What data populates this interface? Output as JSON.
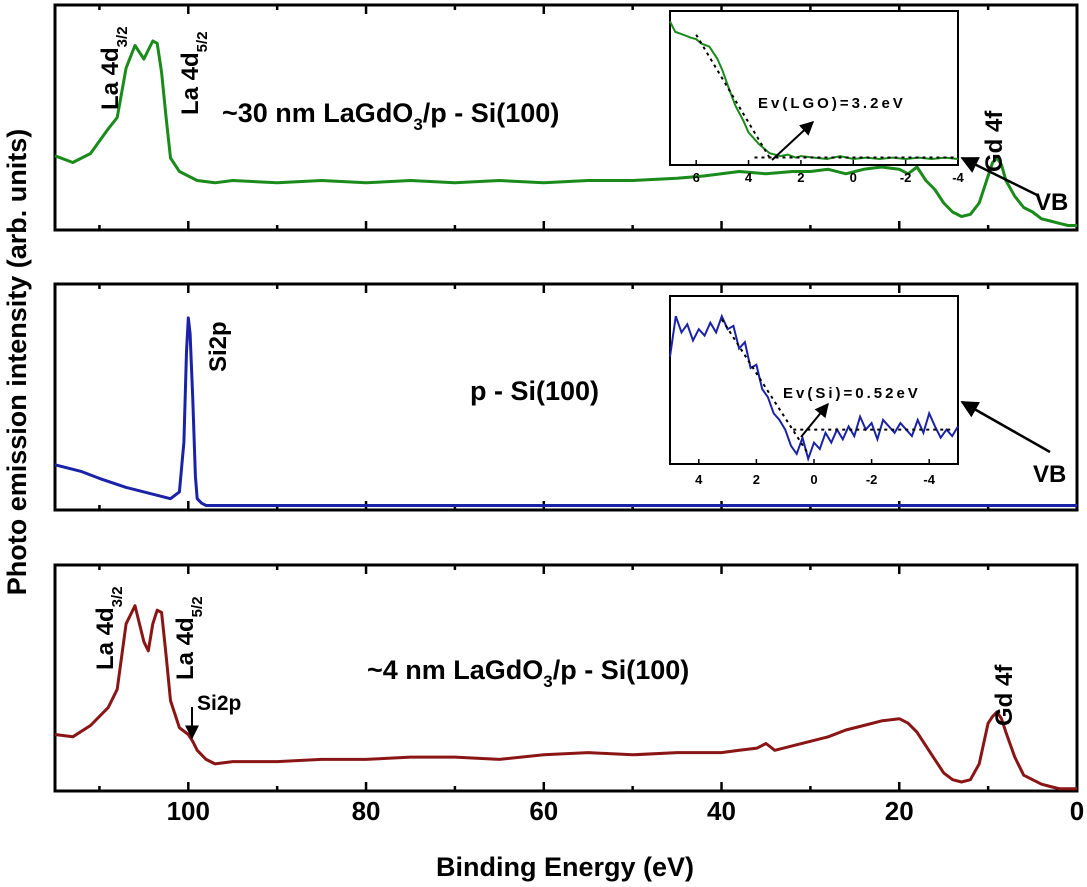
{
  "chart_data": {
    "type": "line",
    "figure": {
      "ylabel": "Photo emission intensity (arb. units)",
      "xlabel": "Binding Energy (eV)",
      "xlim": [
        115,
        0
      ],
      "xticks": [
        100,
        80,
        60,
        40,
        20,
        0
      ],
      "xtick_labels": [
        "100",
        "80",
        "60",
        "40",
        "20",
        "0"
      ]
    },
    "panels": [
      {
        "title": "~30 nm LaGdO3/p - Si(100)",
        "title_main": "~30 nm LaGdO",
        "title_sub": "3",
        "title_rest": "/p - Si(100)",
        "color": "#1a8a1a",
        "ylim": [
          0,
          1
        ],
        "x": [
          115,
          113,
          111,
          109,
          108,
          107,
          106,
          105,
          104.5,
          104,
          103.5,
          103,
          102.5,
          102,
          101,
          100,
          99,
          97,
          95,
          90,
          85,
          80,
          75,
          70,
          65,
          60,
          55,
          50,
          45,
          42,
          40,
          38,
          35,
          32,
          30,
          28,
          26,
          24,
          22,
          20,
          19,
          18,
          17,
          16,
          15,
          14,
          13,
          12,
          11,
          10,
          9.5,
          9,
          8.5,
          8,
          7,
          6,
          5,
          4,
          3,
          2,
          1,
          0
        ],
        "y": [
          0.33,
          0.3,
          0.34,
          0.45,
          0.5,
          0.72,
          0.82,
          0.76,
          0.8,
          0.84,
          0.83,
          0.7,
          0.5,
          0.32,
          0.26,
          0.24,
          0.22,
          0.21,
          0.22,
          0.21,
          0.22,
          0.21,
          0.22,
          0.21,
          0.22,
          0.21,
          0.22,
          0.22,
          0.23,
          0.24,
          0.25,
          0.26,
          0.25,
          0.26,
          0.26,
          0.27,
          0.25,
          0.27,
          0.28,
          0.27,
          0.25,
          0.28,
          0.22,
          0.18,
          0.12,
          0.08,
          0.06,
          0.07,
          0.12,
          0.24,
          0.3,
          0.32,
          0.29,
          0.22,
          0.15,
          0.1,
          0.08,
          0.05,
          0.04,
          0.03,
          0.02,
          0.02
        ],
        "annotations": [
          "La 4d",
          "3/2",
          "La 4d",
          "5/2",
          "Gd 4f",
          "VB"
        ]
      },
      {
        "title": "p - Si(100)",
        "color": "#1a22a8",
        "ylim": [
          0,
          1
        ],
        "x": [
          115,
          112,
          110,
          107,
          104,
          102,
          101,
          100.5,
          100.2,
          100,
          99.8,
          99.5,
          99.2,
          99,
          98.5,
          98,
          97,
          95,
          90,
          85,
          80,
          70,
          60,
          50,
          40,
          30,
          20,
          15,
          10,
          5,
          2,
          0
        ],
        "y": [
          0.2,
          0.17,
          0.14,
          0.1,
          0.07,
          0.05,
          0.08,
          0.3,
          0.7,
          0.85,
          0.78,
          0.5,
          0.15,
          0.05,
          0.03,
          0.02,
          0.02,
          0.02,
          0.02,
          0.02,
          0.02,
          0.02,
          0.02,
          0.02,
          0.02,
          0.02,
          0.02,
          0.02,
          0.02,
          0.02,
          0.02,
          0.02
        ],
        "annotations": [
          "Si2p",
          "VB"
        ]
      },
      {
        "title": "~4 nm LaGdO3/p - Si(100)",
        "title_main": "~4 nm LaGdO",
        "title_sub": "3",
        "title_rest": "/p - Si(100)",
        "color": "#8a1515",
        "ylim": [
          0,
          1
        ],
        "x": [
          115,
          113,
          111,
          109,
          108,
          107,
          106,
          105,
          104.5,
          104,
          103.5,
          103,
          102.5,
          102,
          101,
          100,
          99.5,
          99,
          98,
          97,
          95,
          90,
          85,
          80,
          75,
          70,
          65,
          60,
          55,
          50,
          45,
          40,
          38,
          36,
          35,
          34,
          32,
          30,
          28,
          26,
          24,
          22,
          20,
          19,
          18,
          17,
          16,
          15,
          14,
          13,
          12,
          11,
          10,
          9.5,
          9,
          8.5,
          8,
          7,
          6,
          5,
          4,
          3,
          2,
          1,
          0
        ],
        "y": [
          0.25,
          0.24,
          0.29,
          0.37,
          0.45,
          0.74,
          0.82,
          0.66,
          0.62,
          0.74,
          0.8,
          0.79,
          0.6,
          0.4,
          0.28,
          0.25,
          0.22,
          0.18,
          0.14,
          0.12,
          0.13,
          0.13,
          0.14,
          0.14,
          0.15,
          0.15,
          0.14,
          0.16,
          0.17,
          0.16,
          0.17,
          0.17,
          0.18,
          0.19,
          0.21,
          0.18,
          0.2,
          0.22,
          0.24,
          0.27,
          0.29,
          0.31,
          0.32,
          0.3,
          0.26,
          0.2,
          0.14,
          0.08,
          0.05,
          0.04,
          0.05,
          0.12,
          0.3,
          0.33,
          0.35,
          0.32,
          0.26,
          0.15,
          0.07,
          0.05,
          0.03,
          0.02,
          0.01,
          0.01,
          0.01
        ],
        "annotations": [
          "La 4d",
          "3/2",
          "La 4d",
          "5/2",
          "Si2p",
          "Gd 4f"
        ]
      }
    ],
    "insets": [
      {
        "label": "Ev(LGO)=3.2eV",
        "xlim": [
          7,
          -4
        ],
        "xticks": [
          6,
          4,
          2,
          0,
          -2,
          -4
        ],
        "xtick_labels": [
          "6",
          "4",
          "2",
          "0",
          "-2",
          "-4"
        ],
        "x": [
          7,
          6.8,
          6.5,
          6.2,
          6,
          5.8,
          5.5,
          5.2,
          5,
          4.8,
          4.5,
          4.2,
          4,
          3.8,
          3.6,
          3.4,
          3.2,
          3,
          2.8,
          2.5,
          2.2,
          2,
          1.5,
          1,
          0.5,
          0,
          -0.5,
          -1,
          -1.5,
          -2,
          -2.5,
          -3,
          -3.5,
          -4
        ],
        "y": [
          0.95,
          0.88,
          0.86,
          0.84,
          0.83,
          0.8,
          0.78,
          0.7,
          0.62,
          0.52,
          0.38,
          0.28,
          0.2,
          0.16,
          0.12,
          0.09,
          0.06,
          0.05,
          0.04,
          0.05,
          0.03,
          0.04,
          0.03,
          0.02,
          0.04,
          0.02,
          0.03,
          0.02,
          0.03,
          0.02,
          0.03,
          0.02,
          0.03,
          0.02
        ],
        "fit_x": [
          6,
          3.2
        ],
        "fit_y": [
          0.86,
          0.03
        ],
        "baseline_y": 0.03
      },
      {
        "label": "Ev(Si)=0.52eV",
        "xlim": [
          5,
          -5
        ],
        "xticks": [
          4,
          2,
          0,
          -2,
          -4
        ],
        "xtick_labels": [
          "4",
          "2",
          "0",
          "-2",
          "-4"
        ],
        "x": [
          5,
          4.8,
          4.6,
          4.4,
          4.2,
          4,
          3.8,
          3.6,
          3.4,
          3.2,
          3,
          2.8,
          2.6,
          2.4,
          2.2,
          2,
          1.8,
          1.6,
          1.4,
          1.2,
          1,
          0.8,
          0.6,
          0.4,
          0.2,
          0,
          -0.2,
          -0.4,
          -0.6,
          -0.8,
          -1,
          -1.2,
          -1.4,
          -1.6,
          -1.8,
          -2,
          -2.2,
          -2.4,
          -2.6,
          -2.8,
          -3,
          -3.2,
          -3.4,
          -3.6,
          -3.8,
          -4,
          -4.2,
          -4.4,
          -4.6,
          -4.8,
          -5
        ],
        "y": [
          0.65,
          0.9,
          0.8,
          0.85,
          0.75,
          0.82,
          0.78,
          0.86,
          0.8,
          0.9,
          0.82,
          0.84,
          0.7,
          0.74,
          0.58,
          0.6,
          0.45,
          0.4,
          0.3,
          0.26,
          0.2,
          0.1,
          0.05,
          0.15,
          0.02,
          0.12,
          0.08,
          0.18,
          0.12,
          0.2,
          0.14,
          0.22,
          0.16,
          0.28,
          0.2,
          0.24,
          0.14,
          0.26,
          0.22,
          0.18,
          0.24,
          0.2,
          0.16,
          0.26,
          0.18,
          0.3,
          0.22,
          0.15,
          0.2,
          0.16,
          0.22
        ],
        "fit_x": [
          3.2,
          0.2
        ],
        "fit_y": [
          0.88,
          0.05
        ],
        "baseline_y": 0.2
      }
    ]
  }
}
